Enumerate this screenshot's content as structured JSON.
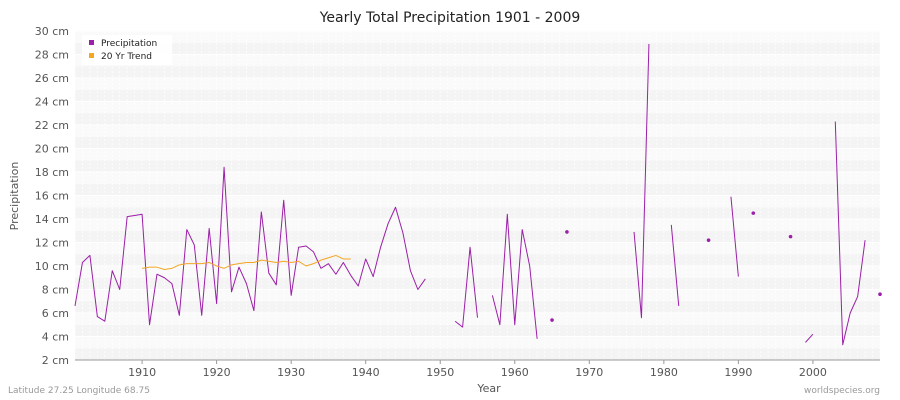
{
  "chart_data": {
    "type": "line",
    "title": "Yearly Total Precipitation 1901 - 2009",
    "xlabel": "Year",
    "ylabel": "Precipitation",
    "xlim": [
      1901,
      2009
    ],
    "ylim": [
      2,
      30
    ],
    "x_ticks": [
      1910,
      1920,
      1930,
      1940,
      1950,
      1960,
      1970,
      1980,
      1990,
      2000
    ],
    "y_ticks": [
      {
        "value": 2,
        "label": "2 cm"
      },
      {
        "value": 4,
        "label": "4 cm"
      },
      {
        "value": 6,
        "label": "6 cm"
      },
      {
        "value": 8,
        "label": "8 cm"
      },
      {
        "value": 10,
        "label": "10 cm"
      },
      {
        "value": 12,
        "label": "12 cm"
      },
      {
        "value": 14,
        "label": "14 cm"
      },
      {
        "value": 16,
        "label": "16 cm"
      },
      {
        "value": 18,
        "label": "18 cm"
      },
      {
        "value": 20,
        "label": "20 cm"
      },
      {
        "value": 22,
        "label": "22 cm"
      },
      {
        "value": 24,
        "label": "24 cm"
      },
      {
        "value": 26,
        "label": "26 cm"
      },
      {
        "value": 28,
        "label": "28 cm"
      },
      {
        "value": 30,
        "label": "30 cm"
      }
    ],
    "grid": true,
    "legend_position": "top-left",
    "series": [
      {
        "name": "Precipitation",
        "color": "#9b1fa8",
        "points": [
          [
            1901,
            6.6
          ],
          [
            1902,
            10.3
          ],
          [
            1903,
            10.9
          ],
          [
            1904,
            5.7
          ],
          [
            1905,
            5.3
          ],
          [
            1906,
            9.6
          ],
          [
            1907,
            8.0
          ],
          [
            1908,
            14.2
          ],
          [
            1909,
            14.3
          ],
          [
            1910,
            14.4
          ],
          [
            1911,
            5.0
          ],
          [
            1912,
            9.3
          ],
          [
            1913,
            9.0
          ],
          [
            1914,
            8.5
          ],
          [
            1915,
            5.8
          ],
          [
            1916,
            13.1
          ],
          [
            1917,
            11.8
          ],
          [
            1918,
            5.8
          ],
          [
            1919,
            13.2
          ],
          [
            1920,
            6.8
          ],
          [
            1921,
            18.4
          ],
          [
            1922,
            7.8
          ],
          [
            1923,
            9.9
          ],
          [
            1924,
            8.5
          ],
          [
            1925,
            6.2
          ],
          [
            1926,
            14.6
          ],
          [
            1927,
            9.4
          ],
          [
            1928,
            8.4
          ],
          [
            1929,
            15.6
          ],
          [
            1930,
            7.5
          ],
          [
            1931,
            11.6
          ],
          [
            1932,
            11.7
          ],
          [
            1933,
            11.2
          ],
          [
            1934,
            9.8
          ],
          [
            1935,
            10.2
          ],
          [
            1936,
            9.3
          ],
          [
            1937,
            10.3
          ],
          [
            1938,
            9.2
          ],
          [
            1939,
            8.3
          ],
          [
            1940,
            10.6
          ],
          [
            1941,
            9.1
          ],
          [
            1942,
            11.6
          ],
          [
            1943,
            13.6
          ],
          [
            1944,
            15.0
          ],
          [
            1945,
            12.8
          ],
          [
            1946,
            9.6
          ],
          [
            1947,
            8.0
          ],
          [
            1948,
            8.9
          ],
          [
            1949,
            null
          ],
          [
            1950,
            null
          ],
          [
            1951,
            null
          ],
          [
            1952,
            5.3
          ],
          [
            1953,
            4.8
          ],
          [
            1954,
            11.6
          ],
          [
            1955,
            5.6
          ],
          [
            1956,
            null
          ],
          [
            1957,
            7.5
          ],
          [
            1958,
            5.0
          ],
          [
            1959,
            14.4
          ],
          [
            1960,
            5.0
          ],
          [
            1961,
            13.1
          ],
          [
            1962,
            10.0
          ],
          [
            1963,
            3.8
          ],
          [
            1964,
            null
          ],
          [
            1965,
            5.4
          ],
          [
            1966,
            null
          ],
          [
            1967,
            12.9
          ],
          [
            1968,
            null
          ],
          [
            1969,
            null
          ],
          [
            1970,
            null
          ],
          [
            1971,
            null
          ],
          [
            1972,
            null
          ],
          [
            1973,
            null
          ],
          [
            1974,
            null
          ],
          [
            1975,
            null
          ],
          [
            1976,
            12.9
          ],
          [
            1977,
            5.6
          ],
          [
            1978,
            28.9
          ],
          [
            1979,
            null
          ],
          [
            1980,
            null
          ],
          [
            1981,
            13.5
          ],
          [
            1982,
            6.6
          ],
          [
            1983,
            null
          ],
          [
            1984,
            null
          ],
          [
            1985,
            null
          ],
          [
            1986,
            12.2
          ],
          [
            1987,
            null
          ],
          [
            1988,
            null
          ],
          [
            1989,
            15.9
          ],
          [
            1990,
            9.1
          ],
          [
            1991,
            null
          ],
          [
            1992,
            14.5
          ],
          [
            1993,
            null
          ],
          [
            1994,
            null
          ],
          [
            1995,
            null
          ],
          [
            1996,
            null
          ],
          [
            1997,
            12.5
          ],
          [
            1998,
            null
          ],
          [
            1999,
            3.5
          ],
          [
            2000,
            4.2
          ],
          [
            2001,
            null
          ],
          [
            2002,
            null
          ],
          [
            2003,
            22.3
          ],
          [
            2004,
            3.3
          ],
          [
            2005,
            6.0
          ],
          [
            2006,
            7.4
          ],
          [
            2007,
            12.2
          ],
          [
            2008,
            null
          ],
          [
            2009,
            7.6
          ]
        ]
      },
      {
        "name": "20 Yr Trend",
        "color": "#f5a623",
        "points": [
          [
            1910,
            9.8
          ],
          [
            1911,
            9.9
          ],
          [
            1912,
            9.9
          ],
          [
            1913,
            9.7
          ],
          [
            1914,
            9.8
          ],
          [
            1915,
            10.1
          ],
          [
            1916,
            10.2
          ],
          [
            1917,
            10.2
          ],
          [
            1918,
            10.2
          ],
          [
            1919,
            10.3
          ],
          [
            1920,
            10.0
          ],
          [
            1921,
            9.8
          ],
          [
            1922,
            10.1
          ],
          [
            1923,
            10.2
          ],
          [
            1924,
            10.3
          ],
          [
            1925,
            10.3
          ],
          [
            1926,
            10.5
          ],
          [
            1927,
            10.4
          ],
          [
            1928,
            10.3
          ],
          [
            1929,
            10.4
          ],
          [
            1930,
            10.3
          ],
          [
            1931,
            10.4
          ],
          [
            1932,
            10.0
          ],
          [
            1933,
            10.2
          ],
          [
            1934,
            10.5
          ],
          [
            1935,
            10.7
          ],
          [
            1936,
            10.9
          ],
          [
            1937,
            10.6
          ],
          [
            1938,
            10.6
          ]
        ]
      }
    ]
  },
  "footer": {
    "location": "Latitude 27.25 Longitude 68.75",
    "source": "worldspecies.org"
  }
}
